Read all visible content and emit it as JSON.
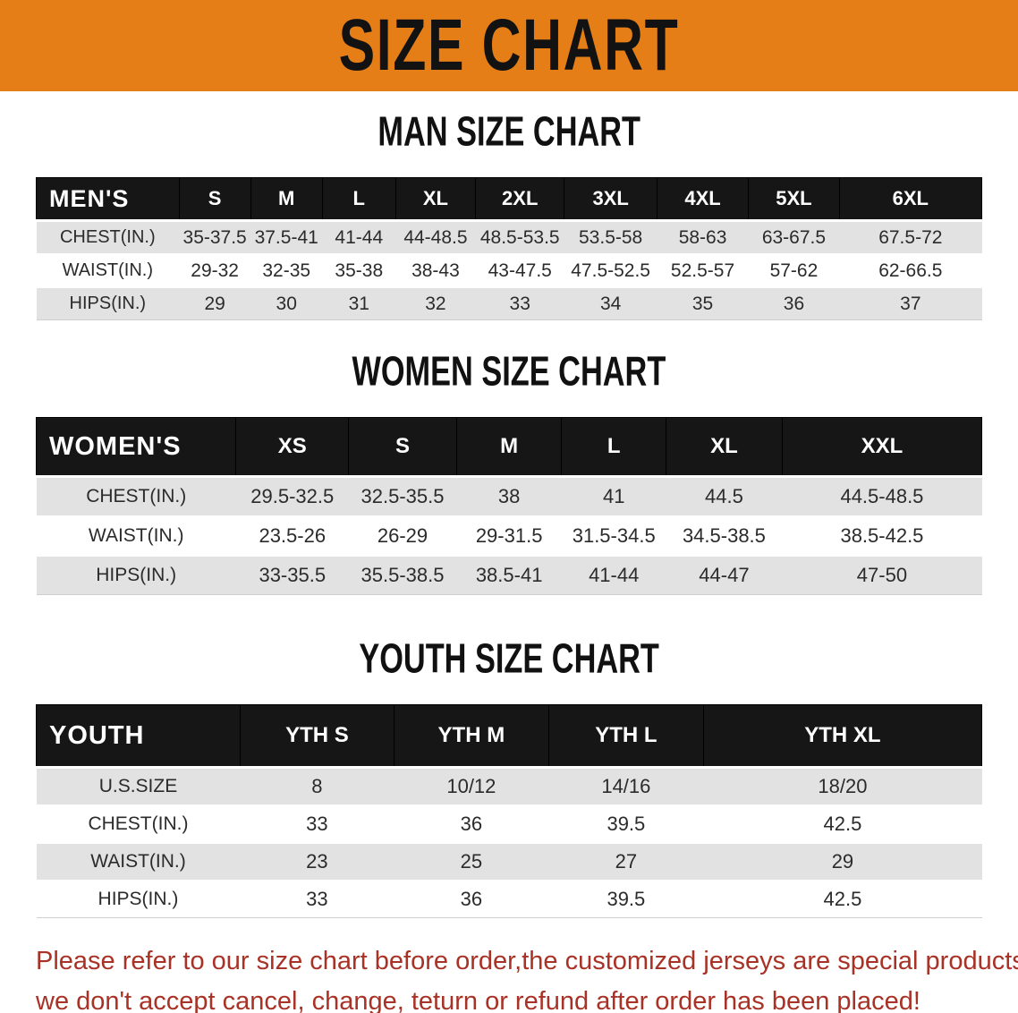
{
  "banner": {
    "title": "SIZE CHART",
    "background_color": "#E67E17",
    "text_color": "#121212"
  },
  "sections": [
    {
      "heading": "MAN SIZE CHART",
      "table": {
        "label": "MEN'S",
        "columns": [
          "S",
          "M",
          "L",
          "XL",
          "2XL",
          "3XL",
          "4XL",
          "5XL",
          "6XL"
        ],
        "rows": [
          {
            "label": "CHEST(IN.)",
            "values": [
              "35-37.5",
              "37.5-41",
              "41-44",
              "44-48.5",
              "48.5-53.5",
              "53.5-58",
              "58-63",
              "63-67.5",
              "67.5-72"
            ]
          },
          {
            "label": "WAIST(IN.)",
            "values": [
              "29-32",
              "32-35",
              "35-38",
              "38-43",
              "43-47.5",
              "47.5-52.5",
              "52.5-57",
              "57-62",
              "62-66.5"
            ]
          },
          {
            "label": "HIPS(IN.)",
            "values": [
              "29",
              "30",
              "31",
              "32",
              "33",
              "34",
              "35",
              "36",
              "37"
            ]
          }
        ]
      }
    },
    {
      "heading": "WOMEN SIZE CHART",
      "table": {
        "label": "WOMEN'S",
        "columns": [
          "XS",
          "S",
          "M",
          "L",
          "XL",
          "XXL"
        ],
        "rows": [
          {
            "label": "CHEST(IN.)",
            "values": [
              "29.5-32.5",
              "32.5-35.5",
              "38",
              "41",
              "44.5",
              "44.5-48.5"
            ]
          },
          {
            "label": "WAIST(IN.)",
            "values": [
              "23.5-26",
              "26-29",
              "29-31.5",
              "31.5-34.5",
              "34.5-38.5",
              "38.5-42.5"
            ]
          },
          {
            "label": "HIPS(IN.)",
            "values": [
              "33-35.5",
              "35.5-38.5",
              "38.5-41",
              "41-44",
              "44-47",
              "47-50"
            ]
          }
        ]
      }
    },
    {
      "heading": "YOUTH SIZE CHART",
      "table": {
        "label": "YOUTH",
        "columns": [
          "YTH S",
          "YTH M",
          "YTH L",
          "YTH XL"
        ],
        "rows": [
          {
            "label": "U.S.SIZE",
            "values": [
              "8",
              "10/12",
              "14/16",
              "18/20"
            ]
          },
          {
            "label": "CHEST(IN.)",
            "values": [
              "33",
              "36",
              "39.5",
              "42.5"
            ]
          },
          {
            "label": "WAIST(IN.)",
            "values": [
              "23",
              "25",
              "27",
              "29"
            ]
          },
          {
            "label": "HIPS(IN.)",
            "values": [
              "33",
              "36",
              "39.5",
              "42.5"
            ]
          }
        ]
      }
    }
  ],
  "disclaimer": {
    "line1": "Please refer to our size chart before order,the customized jerseys are special products,",
    "line2": "we don't accept cancel, change, teturn or refund after order has been placed!",
    "text_color": "#A93226"
  }
}
